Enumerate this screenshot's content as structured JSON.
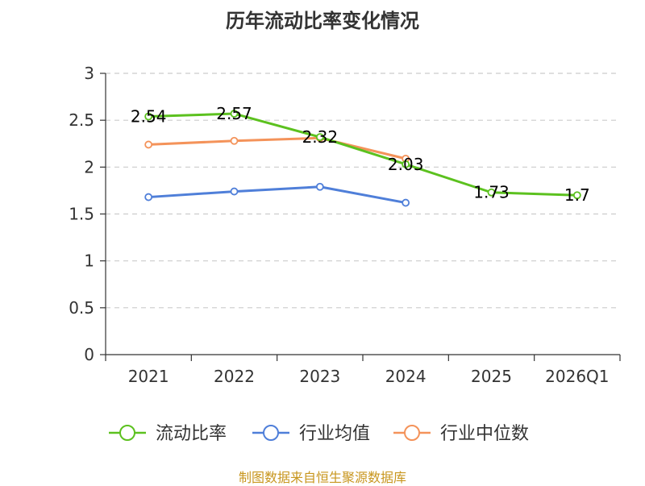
{
  "chart_data": {
    "type": "line",
    "title": "历年流动比率变化情况",
    "categories": [
      "2021",
      "2022",
      "2023",
      "2024",
      "2025",
      "2026Q1"
    ],
    "ylim": [
      0,
      3
    ],
    "yticks": [
      "0",
      "0.5",
      "1",
      "1.5",
      "2",
      "2.5",
      "3"
    ],
    "ytick_values": [
      0,
      0.5,
      1,
      1.5,
      2,
      2.5,
      3
    ],
    "grid": true,
    "legend_position": "bottom",
    "series": [
      {
        "name": "流动比率",
        "color": "#5cc11f",
        "values": [
          2.54,
          2.57,
          2.32,
          2.03,
          1.73,
          1.7
        ],
        "labels": [
          "2.54",
          "2.57",
          "2.32",
          "2.03",
          "1.73",
          "1.7"
        ]
      },
      {
        "name": "行业均值",
        "color": "#4f7fd9",
        "values": [
          1.68,
          1.74,
          1.79,
          1.62,
          null,
          null
        ],
        "labels": null
      },
      {
        "name": "行业中位数",
        "color": "#f4935a",
        "values": [
          2.24,
          2.28,
          2.31,
          2.09,
          null,
          null
        ],
        "labels": null
      }
    ]
  },
  "footer": {
    "source": "制图数据来自恒生聚源数据库"
  }
}
